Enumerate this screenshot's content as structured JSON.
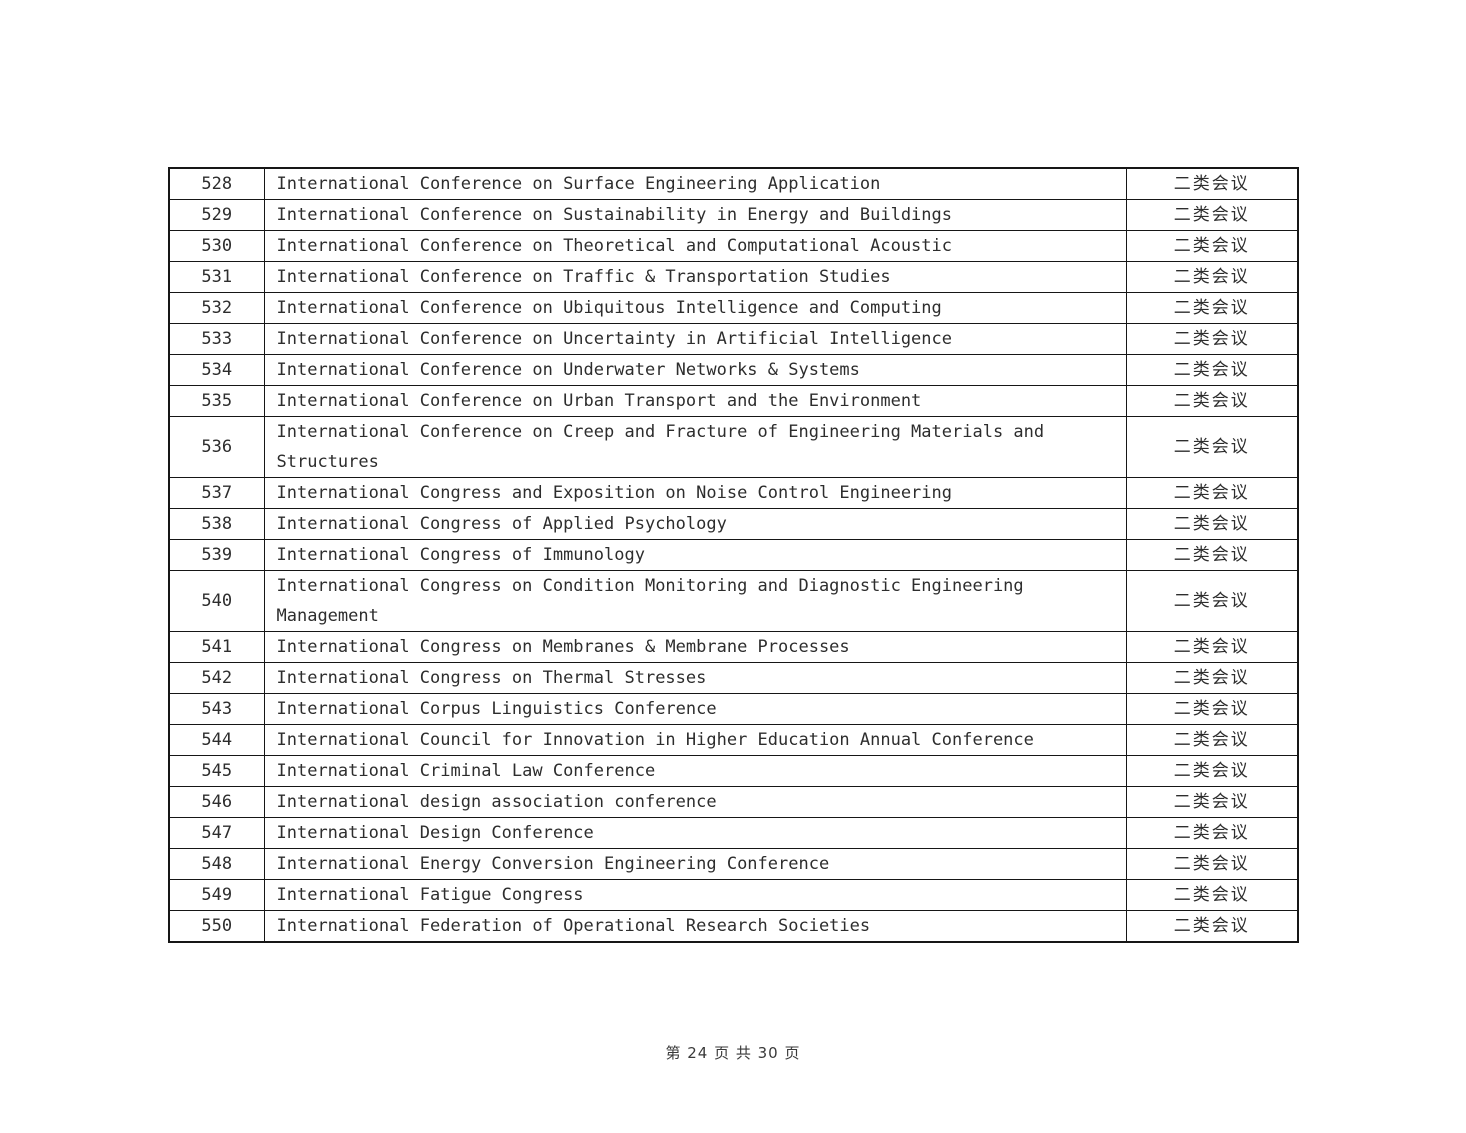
{
  "table": {
    "category_color": "#2d2d2d",
    "rows": [
      {
        "id": "528",
        "name": "International Conference on Surface Engineering Application",
        "category": "二类会议"
      },
      {
        "id": "529",
        "name": "International Conference on Sustainability in Energy and Buildings",
        "category": "二类会议"
      },
      {
        "id": "530",
        "name": "International Conference on Theoretical and Computational Acoustic",
        "category": "二类会议"
      },
      {
        "id": "531",
        "name": "International Conference on Traffic & Transportation Studies",
        "category": "二类会议"
      },
      {
        "id": "532",
        "name": "International Conference on Ubiquitous Intelligence and Computing",
        "category": "二类会议"
      },
      {
        "id": "533",
        "name": "International Conference on Uncertainty in Artificial Intelligence",
        "category": "二类会议"
      },
      {
        "id": "534",
        "name": "International Conference on Underwater Networks & Systems",
        "category": "二类会议"
      },
      {
        "id": "535",
        "name": "International Conference on Urban Transport and the Environment",
        "category": "二类会议"
      },
      {
        "id": "536",
        "name": "International Conference on Creep and Fracture of Engineering Materials and Structures",
        "category": "二类会议"
      },
      {
        "id": "537",
        "name": "International Congress and Exposition on Noise Control Engineering",
        "category": "二类会议"
      },
      {
        "id": "538",
        "name": "International Congress of Applied Psychology",
        "category": "二类会议"
      },
      {
        "id": "539",
        "name": "International Congress of Immunology",
        "category": "二类会议"
      },
      {
        "id": "540",
        "name": "International Congress on Condition Monitoring and Diagnostic Engineering Management",
        "category": "二类会议"
      },
      {
        "id": "541",
        "name": "International Congress on Membranes & Membrane Processes",
        "category": "二类会议"
      },
      {
        "id": "542",
        "name": "International Congress on Thermal Stresses",
        "category": "二类会议"
      },
      {
        "id": "543",
        "name": "International Corpus Linguistics Conference",
        "category": "二类会议"
      },
      {
        "id": "544",
        "name": "International Council for Innovation in Higher Education Annual Conference",
        "category": "二类会议"
      },
      {
        "id": "545",
        "name": "International Criminal Law Conference",
        "category": "二类会议"
      },
      {
        "id": "546",
        "name": "International design association conference",
        "category": "二类会议"
      },
      {
        "id": "547",
        "name": "International Design Conference",
        "category": "二类会议"
      },
      {
        "id": "548",
        "name": "International Energy Conversion Engineering Conference",
        "category": "二类会议"
      },
      {
        "id": "549",
        "name": "International Fatigue Congress",
        "category": "二类会议"
      },
      {
        "id": "550",
        "name": "International Federation of Operational Research Societies",
        "category": "二类会议"
      }
    ]
  },
  "footer": {
    "text": "第 24 页 共 30 页"
  }
}
